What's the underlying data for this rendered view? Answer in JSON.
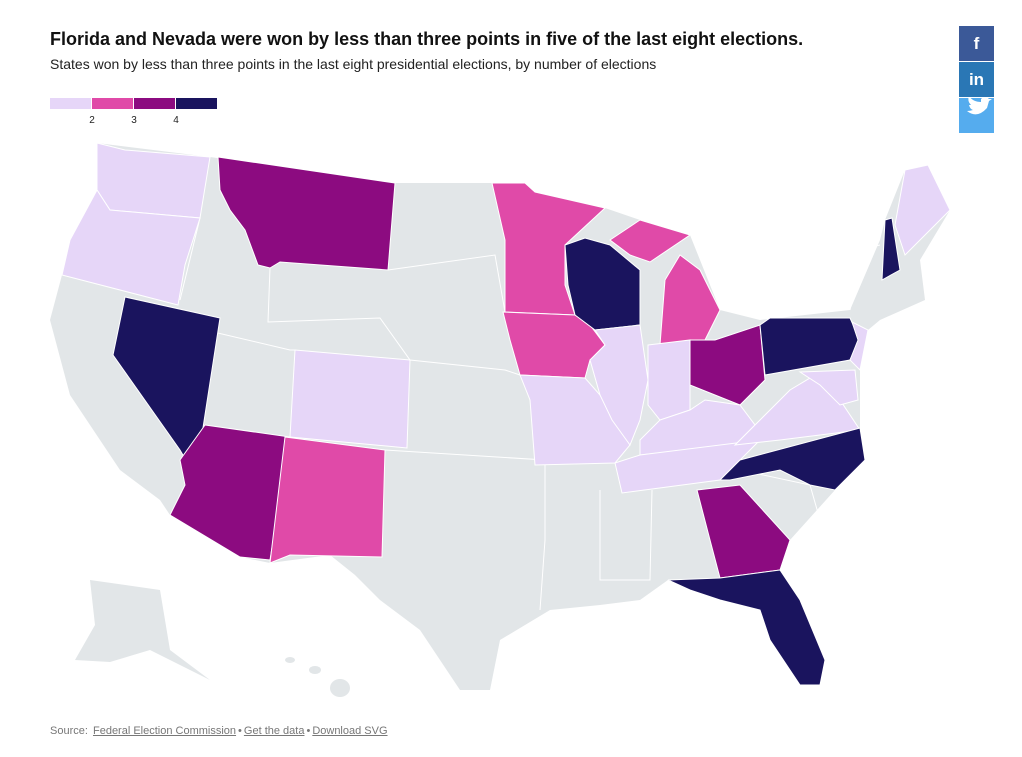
{
  "header": {
    "title": "Florida and Nevada were won by less than three points in five of the last eight elections.",
    "subtitle": "States won by less than three points in the last eight presidential elections, by number of elections"
  },
  "legend": {
    "breaks": [
      2,
      3,
      4
    ],
    "colors": [
      "#e6d6f8",
      "#e04aa8",
      "#8c0b80",
      "#1a145e"
    ]
  },
  "map": {
    "base_color": "#e2e6e8",
    "values": [
      1,
      1,
      5,
      3,
      3,
      2,
      1,
      2,
      2,
      1,
      4,
      1,
      2,
      1,
      3,
      1,
      1,
      1,
      4,
      3,
      5,
      4,
      4,
      1,
      1,
      1
    ]
  },
  "footer": {
    "source_label": "Source:",
    "separator": "•",
    "links": [
      "Federal Election Commission",
      "Get the data",
      "Download SVG"
    ]
  },
  "share": {
    "facebook": "f",
    "linkedin": "in"
  }
}
